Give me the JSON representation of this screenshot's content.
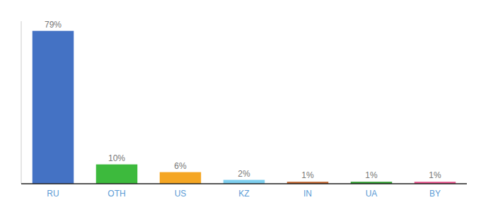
{
  "chart_data": {
    "type": "bar",
    "categories": [
      "RU",
      "OTH",
      "US",
      "KZ",
      "IN",
      "UA",
      "BY"
    ],
    "values": [
      79,
      10,
      6,
      2,
      1,
      1,
      1
    ],
    "value_labels": [
      "79%",
      "10%",
      "6%",
      "2%",
      "1%",
      "1%",
      "1%"
    ],
    "colors": [
      "#4472c4",
      "#3dba3d",
      "#f5a623",
      "#7ecfef",
      "#c0622a",
      "#2d9e2d",
      "#e8508a"
    ],
    "ylim": [
      0,
      84
    ],
    "data_labels": true,
    "tick_labels": "x"
  }
}
